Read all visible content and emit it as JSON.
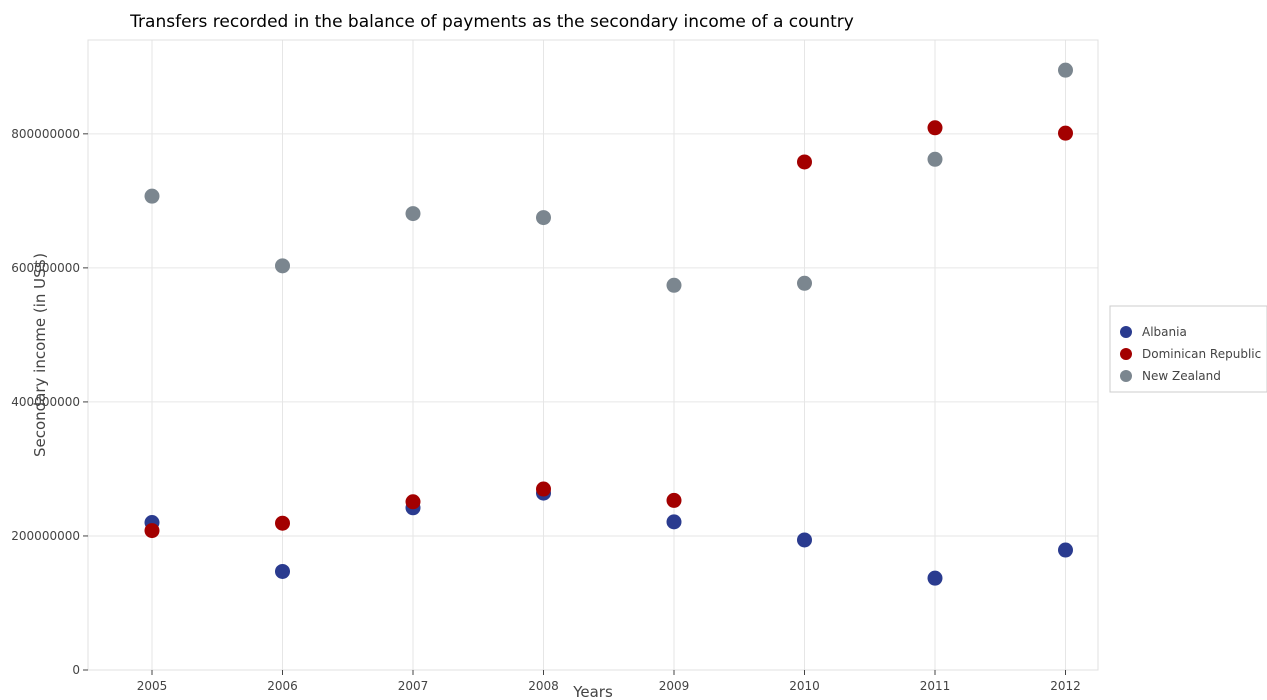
{
  "chart_data": {
    "type": "scatter",
    "title": "Transfers recorded in the balance of payments as the secondary income of a country",
    "xlabel": "Years",
    "ylabel": "Secondary income (in US$)",
    "categories": [
      "2005",
      "2006",
      "2007",
      "2008",
      "2009",
      "2010",
      "2011",
      "2012"
    ],
    "ylim": [
      0,
      940000000
    ],
    "yticks": [
      0,
      200000000,
      400000000,
      600000000,
      800000000
    ],
    "ytick_labels": [
      "0",
      "200000000",
      "400000000",
      "600000000",
      "800000000"
    ],
    "grid": true,
    "legend_position": "right",
    "series": [
      {
        "name": "Albania",
        "color": "#2a3b8f",
        "values": [
          220000000,
          147000000,
          242000000,
          264000000,
          221000000,
          194000000,
          137000000,
          179000000
        ]
      },
      {
        "name": "Dominican Republic",
        "color": "#a30000",
        "values": [
          208000000,
          219000000,
          251000000,
          270000000,
          253000000,
          758000000,
          809000000,
          801000000
        ]
      },
      {
        "name": "New Zealand",
        "color": "#7b868f",
        "values": [
          707000000,
          603000000,
          681000000,
          675000000,
          574000000,
          577000000,
          762000000,
          895000000
        ]
      }
    ]
  }
}
